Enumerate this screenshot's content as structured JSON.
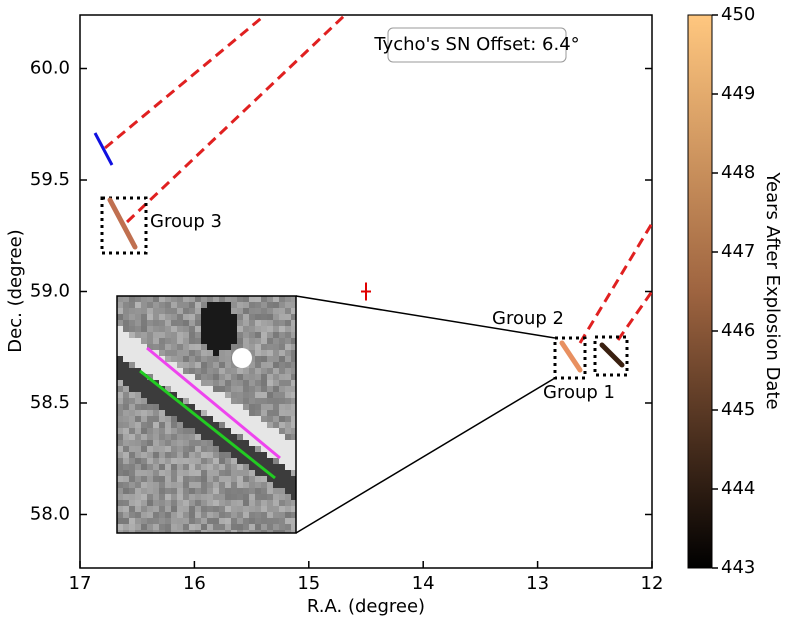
{
  "chart_data": {
    "type": "scatter",
    "title": "Tycho's SN Offset: 6.4°",
    "x_label": "R.A. (degree)",
    "y_label": "Dec. (degree)",
    "x": [
      14.5
    ],
    "values": [
      59.0
    ],
    "color": "#e00000",
    "xlim": [
      17,
      12
    ],
    "ylim": [
      57.76,
      60.24
    ],
    "xticks": [
      17,
      16,
      15,
      14,
      13,
      12
    ],
    "yticks": [
      {
        "value": 58,
        "label": "58.0"
      },
      {
        "value": 58.5,
        "label": "58.5"
      },
      {
        "value": 59,
        "label": "59.0"
      },
      {
        "value": 59.5,
        "label": "59.5"
      },
      {
        "value": 60,
        "label": "60.0"
      }
    ],
    "annotations": [
      "Group 1",
      "Group 2",
      "Group 3"
    ],
    "colorbar": {
      "label": "Years After Explosion Date",
      "lim": [
        443,
        450
      ],
      "ticks": [
        443,
        444,
        445,
        446,
        447,
        448,
        449,
        450
      ]
    }
  }
}
